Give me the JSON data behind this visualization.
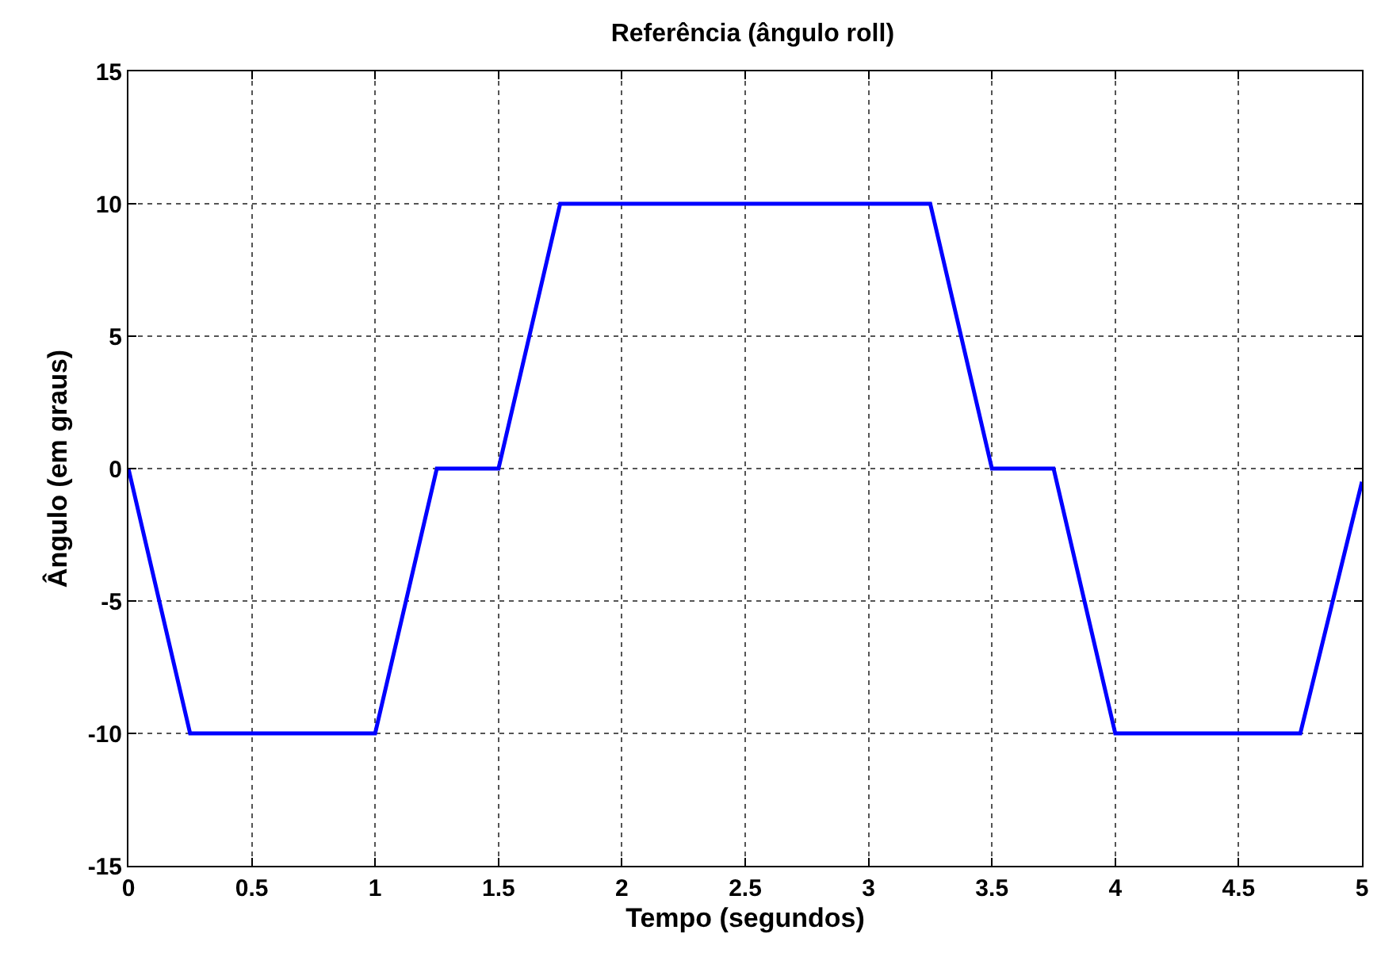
{
  "chart_data": {
    "type": "line",
    "title": "Referência (ângulo roll)",
    "xlabel": "Tempo (segundos)",
    "ylabel": "Ângulo (em graus)",
    "x": [
      0,
      0.25,
      1,
      1.25,
      1.5,
      1.75,
      3.25,
      3.5,
      3.75,
      4,
      4.75,
      5
    ],
    "series": [
      {
        "color": "#0000ff",
        "values": [
          0,
          -10,
          -10,
          0,
          0,
          10,
          10,
          0,
          0,
          -10,
          -10,
          -0.5
        ]
      }
    ],
    "xlim": [
      0,
      5
    ],
    "xticks": [
      0,
      0.5,
      1,
      1.5,
      2,
      2.5,
      3,
      3.5,
      4,
      4.5,
      5
    ],
    "ylim": [
      -15,
      15
    ],
    "yticks": [
      -15,
      -10,
      -5,
      0,
      5,
      10,
      15
    ],
    "grid": true,
    "line_style": "solid",
    "marker": "none",
    "legend": false
  }
}
